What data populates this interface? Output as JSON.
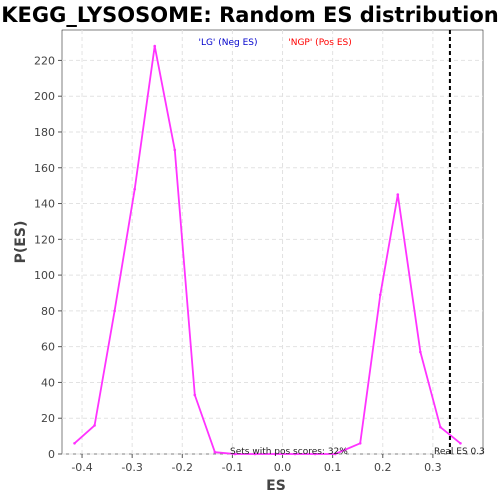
{
  "chart_data": {
    "type": "line",
    "title": "KEGG_LYSOSOME: Random ES distribution",
    "xlabel": "ES",
    "ylabel": "P(ES)",
    "xlim": [
      -0.44,
      0.4
    ],
    "ylim": [
      0,
      237
    ],
    "x_ticks": [
      "-0.4",
      "-0.3",
      "-0.2",
      "-0.1",
      "0.0",
      "0.1",
      "0.2",
      "0.3"
    ],
    "x_tick_values": [
      -0.4,
      -0.3,
      -0.2,
      -0.1,
      0.0,
      0.1,
      0.2,
      0.3
    ],
    "y_ticks": [
      "0",
      "20",
      "40",
      "60",
      "80",
      "100",
      "120",
      "140",
      "160",
      "180",
      "200",
      "220"
    ],
    "y_tick_values": [
      0,
      20,
      40,
      60,
      80,
      100,
      120,
      140,
      160,
      180,
      200,
      220
    ],
    "grid": true,
    "series": [
      {
        "color": "#ff33ff",
        "x": [
          -0.415,
          -0.375,
          -0.335,
          -0.295,
          -0.255,
          -0.215,
          -0.175,
          -0.135,
          -0.095,
          -0.055,
          -0.015,
          0.025,
          0.065,
          0.105,
          0.155,
          0.195,
          0.23,
          0.275,
          0.315,
          0.355
        ],
        "y": [
          6,
          16,
          80,
          148,
          228,
          170,
          33,
          1,
          0,
          0,
          0,
          0,
          0,
          0,
          6,
          89,
          145,
          57,
          15,
          6
        ]
      }
    ],
    "legend": [
      {
        "label": "'LG' (Neg ES)",
        "color": "#0000cc"
      },
      {
        "label": "'NGP' (Pos ES)",
        "color": "#ff0000"
      }
    ],
    "reference_line": {
      "x": 0.334,
      "label": "Real ES 0.3"
    },
    "annotation": "Sets with pos scores: 32%"
  }
}
